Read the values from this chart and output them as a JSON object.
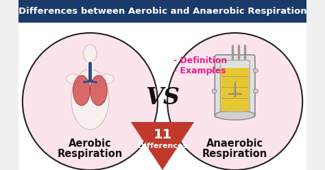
{
  "title": "Differences between Aerobic and Anaerobic Respiration",
  "title_bg": "#1a3a6b",
  "title_color": "#ffffff",
  "bg_color": "#f0f0f0",
  "left_label_line1": "Aerobic",
  "left_label_line2": "Respiration",
  "right_label_line1": "Anaerobic",
  "right_label_line2": "Respiration",
  "vs_text": "VS",
  "center_num": "11",
  "center_sub": "Differences",
  "bullet1": "- Definition",
  "bullet2": "- Examples",
  "bullet_color": "#e91e8c",
  "ellipse_fill": "#fce4ec",
  "ellipse_edge": "#222222",
  "triangle_color": "#c0392b",
  "triangle_text_color": "#ffffff",
  "vs_color": "#111111",
  "label_color": "#111111",
  "title_fontsize": 9.5,
  "label_fontsize": 10.5,
  "vs_fontsize": 24,
  "bullet_fontsize": 9,
  "tri_num_fontsize": 14,
  "tri_sub_fontsize": 8
}
